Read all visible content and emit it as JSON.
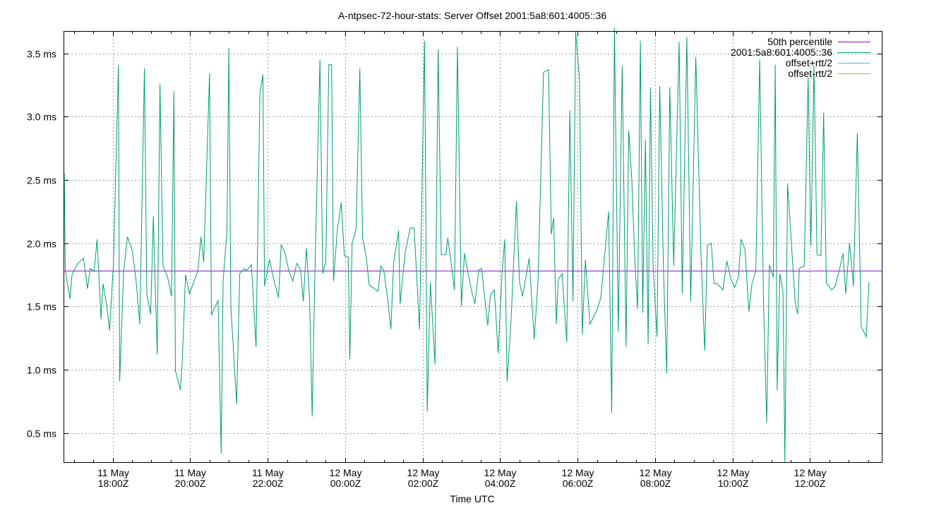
{
  "colors": {
    "percentile": "#9400d3",
    "offset": "#009e73",
    "offset_plus": "#56b4e9",
    "offset_minus": "#e69f00",
    "grid": "#a0a0a0",
    "axis": "#000000"
  },
  "chart_data": {
    "type": "line",
    "title": "A-ntpsec-72-hour-stats: Server Offset 2001:5a8:601:4005::36",
    "xlabel": "Time UTC",
    "ylabel": "",
    "x_unit": "hours since 11 May 17:00Z",
    "xlim": [
      -0.25,
      20.85
    ],
    "ylim": [
      0.27,
      3.67
    ],
    "grid": true,
    "legend_position": "top-right",
    "x_ticks": [
      {
        "x": 1,
        "line1": "11 May",
        "line2": "18:00Z"
      },
      {
        "x": 3,
        "line1": "11 May",
        "line2": "20:00Z"
      },
      {
        "x": 5,
        "line1": "11 May",
        "line2": "22:00Z"
      },
      {
        "x": 7,
        "line1": "12 May",
        "line2": "00:00Z"
      },
      {
        "x": 9,
        "line1": "12 May",
        "line2": "02:00Z"
      },
      {
        "x": 11,
        "line1": "12 May",
        "line2": "04:00Z"
      },
      {
        "x": 13,
        "line1": "12 May",
        "line2": "06:00Z"
      },
      {
        "x": 15,
        "line1": "12 May",
        "line2": "08:00Z"
      },
      {
        "x": 17,
        "line1": "12 May",
        "line2": "10:00Z"
      },
      {
        "x": 19,
        "line1": "12 May",
        "line2": "12:00Z"
      }
    ],
    "y_ticks": [
      {
        "v": 0.5,
        "label": "0.5 ms"
      },
      {
        "v": 1.0,
        "label": "1.0 ms"
      },
      {
        "v": 1.5,
        "label": "1.5 ms"
      },
      {
        "v": 2.0,
        "label": "2.0 ms"
      },
      {
        "v": 2.5,
        "label": "2.5 ms"
      },
      {
        "v": 3.0,
        "label": "3.0 ms"
      },
      {
        "v": 3.5,
        "label": "3.5 ms"
      }
    ],
    "series": [
      {
        "name": "50th percentile",
        "color_key": "percentile",
        "points": [
          [
            -0.25,
            1.78
          ],
          [
            20.85,
            1.78
          ]
        ]
      },
      {
        "name": "2001:5a8:601:4005::36",
        "color_key": "offset",
        "points": [
          [
            -0.25,
            2.55
          ],
          [
            -0.22,
            1.78
          ],
          [
            -0.1,
            1.56
          ],
          [
            -0.05,
            1.75
          ],
          [
            0.1,
            1.84
          ],
          [
            0.25,
            1.88
          ],
          [
            0.35,
            1.64
          ],
          [
            0.42,
            1.8
          ],
          [
            0.52,
            1.78
          ],
          [
            0.6,
            2.03
          ],
          [
            0.7,
            1.4
          ],
          [
            0.75,
            1.68
          ],
          [
            0.85,
            1.5
          ],
          [
            0.92,
            1.31
          ],
          [
            1.02,
            1.84
          ],
          [
            1.15,
            3.41
          ],
          [
            1.18,
            0.91
          ],
          [
            1.28,
            1.76
          ],
          [
            1.38,
            2.05
          ],
          [
            1.5,
            1.95
          ],
          [
            1.6,
            1.72
          ],
          [
            1.7,
            1.36
          ],
          [
            1.82,
            3.38
          ],
          [
            1.88,
            1.6
          ],
          [
            1.98,
            1.44
          ],
          [
            2.05,
            2.21
          ],
          [
            2.15,
            1.12
          ],
          [
            2.22,
            3.26
          ],
          [
            2.3,
            1.82
          ],
          [
            2.42,
            1.73
          ],
          [
            2.52,
            1.58
          ],
          [
            2.58,
            3.2
          ],
          [
            2.62,
            0.99
          ],
          [
            2.75,
            0.84
          ],
          [
            2.8,
            1.1
          ],
          [
            2.88,
            1.75
          ],
          [
            2.98,
            1.6
          ],
          [
            3.1,
            1.7
          ],
          [
            3.2,
            1.78
          ],
          [
            3.28,
            2.05
          ],
          [
            3.35,
            1.85
          ],
          [
            3.5,
            3.34
          ],
          [
            3.55,
            1.43
          ],
          [
            3.72,
            1.55
          ],
          [
            3.8,
            0.34
          ],
          [
            3.85,
            1.7
          ],
          [
            3.95,
            2.1
          ],
          [
            4.0,
            3.54
          ],
          [
            4.05,
            1.5
          ],
          [
            4.2,
            0.73
          ],
          [
            4.28,
            1.76
          ],
          [
            4.4,
            1.8
          ],
          [
            4.45,
            1.78
          ],
          [
            4.58,
            1.83
          ],
          [
            4.7,
            1.18
          ],
          [
            4.8,
            3.19
          ],
          [
            4.88,
            3.33
          ],
          [
            4.92,
            1.66
          ],
          [
            5.05,
            1.87
          ],
          [
            5.15,
            1.72
          ],
          [
            5.28,
            1.57
          ],
          [
            5.35,
            1.99
          ],
          [
            5.45,
            1.92
          ],
          [
            5.55,
            1.78
          ],
          [
            5.65,
            1.7
          ],
          [
            5.75,
            1.84
          ],
          [
            5.85,
            1.79
          ],
          [
            5.92,
            1.54
          ],
          [
            6.0,
            1.96
          ],
          [
            6.08,
            1.58
          ],
          [
            6.15,
            0.63
          ],
          [
            6.22,
            1.78
          ],
          [
            6.35,
            3.45
          ],
          [
            6.42,
            1.76
          ],
          [
            6.5,
            1.85
          ],
          [
            6.58,
            3.41
          ],
          [
            6.65,
            3.41
          ],
          [
            6.7,
            1.7
          ],
          [
            6.8,
            2.11
          ],
          [
            6.9,
            2.32
          ],
          [
            6.98,
            1.9
          ],
          [
            7.08,
            1.89
          ],
          [
            7.12,
            1.08
          ],
          [
            7.18,
            2.0
          ],
          [
            7.28,
            2.11
          ],
          [
            7.38,
            3.38
          ],
          [
            7.45,
            2.04
          ],
          [
            7.55,
            1.88
          ],
          [
            7.62,
            1.67
          ],
          [
            7.75,
            1.64
          ],
          [
            7.85,
            1.62
          ],
          [
            7.92,
            1.82
          ],
          [
            8.0,
            1.78
          ],
          [
            8.1,
            1.55
          ],
          [
            8.18,
            1.32
          ],
          [
            8.25,
            1.84
          ],
          [
            8.38,
            2.1
          ],
          [
            8.42,
            1.52
          ],
          [
            8.55,
            1.93
          ],
          [
            8.68,
            2.12
          ],
          [
            8.78,
            2.12
          ],
          [
            8.92,
            1.32
          ],
          [
            9.05,
            3.6
          ],
          [
            9.12,
            0.67
          ],
          [
            9.2,
            1.69
          ],
          [
            9.32,
            1.04
          ],
          [
            9.4,
            3.53
          ],
          [
            9.48,
            1.91
          ],
          [
            9.6,
            1.91
          ],
          [
            9.65,
            2.04
          ],
          [
            9.72,
            1.88
          ],
          [
            9.82,
            1.63
          ],
          [
            9.9,
            3.55
          ],
          [
            10.0,
            1.5
          ],
          [
            10.08,
            1.92
          ],
          [
            10.15,
            1.8
          ],
          [
            10.25,
            1.64
          ],
          [
            10.35,
            1.52
          ],
          [
            10.45,
            1.79
          ],
          [
            10.52,
            1.8
          ],
          [
            10.68,
            1.35
          ],
          [
            10.75,
            1.59
          ],
          [
            10.85,
            1.63
          ],
          [
            10.95,
            1.13
          ],
          [
            11.05,
            1.77
          ],
          [
            11.12,
            2.03
          ],
          [
            11.18,
            0.91
          ],
          [
            11.28,
            1.38
          ],
          [
            11.42,
            2.33
          ],
          [
            11.5,
            1.69
          ],
          [
            11.58,
            1.58
          ],
          [
            11.75,
            1.88
          ],
          [
            11.88,
            1.24
          ],
          [
            11.98,
            1.71
          ],
          [
            12.12,
            3.35
          ],
          [
            12.25,
            3.37
          ],
          [
            12.32,
            2.07
          ],
          [
            12.38,
            2.2
          ],
          [
            12.45,
            1.36
          ],
          [
            12.5,
            1.71
          ],
          [
            12.6,
            1.76
          ],
          [
            12.72,
            1.22
          ],
          [
            12.8,
            3.05
          ],
          [
            12.88,
            1.54
          ],
          [
            12.95,
            3.67
          ],
          [
            13.05,
            3.29
          ],
          [
            13.12,
            1.28
          ],
          [
            13.2,
            1.87
          ],
          [
            13.32,
            1.36
          ],
          [
            13.5,
            1.47
          ],
          [
            13.6,
            1.57
          ],
          [
            13.8,
            2.25
          ],
          [
            13.88,
            0.66
          ],
          [
            13.95,
            3.7
          ],
          [
            14.05,
            1.3
          ],
          [
            14.15,
            3.4
          ],
          [
            14.25,
            1.18
          ],
          [
            14.32,
            2.89
          ],
          [
            14.4,
            2.49
          ],
          [
            14.48,
            1.84
          ],
          [
            14.55,
            1.48
          ],
          [
            14.62,
            3.6
          ],
          [
            14.68,
            1.45
          ],
          [
            14.75,
            2.82
          ],
          [
            14.82,
            1.2
          ],
          [
            14.88,
            3.23
          ],
          [
            14.95,
            1.8
          ],
          [
            15.05,
            1.26
          ],
          [
            15.12,
            3.24
          ],
          [
            15.22,
            1.75
          ],
          [
            15.3,
            0.97
          ],
          [
            15.38,
            3.23
          ],
          [
            15.48,
            1.82
          ],
          [
            15.62,
            3.59
          ],
          [
            15.7,
            1.6
          ],
          [
            15.82,
            3.63
          ],
          [
            15.92,
            1.54
          ],
          [
            16.05,
            3.47
          ],
          [
            16.18,
            1.95
          ],
          [
            16.28,
            1.15
          ],
          [
            16.35,
            1.98
          ],
          [
            16.45,
            2.0
          ],
          [
            16.52,
            1.68
          ],
          [
            16.6,
            1.68
          ],
          [
            16.75,
            1.63
          ],
          [
            16.85,
            1.86
          ],
          [
            16.95,
            1.72
          ],
          [
            17.05,
            1.65
          ],
          [
            17.15,
            1.73
          ],
          [
            17.22,
            2.03
          ],
          [
            17.32,
            1.95
          ],
          [
            17.42,
            1.46
          ],
          [
            17.5,
            1.68
          ],
          [
            17.6,
            1.78
          ],
          [
            17.7,
            3.45
          ],
          [
            17.8,
            1.52
          ],
          [
            17.88,
            0.58
          ],
          [
            17.95,
            1.83
          ],
          [
            18.05,
            1.73
          ],
          [
            18.1,
            3.41
          ],
          [
            18.15,
            0.84
          ],
          [
            18.22,
            1.76
          ],
          [
            18.3,
            1.62
          ],
          [
            18.35,
            0.27
          ],
          [
            18.42,
            2.47
          ],
          [
            18.55,
            1.84
          ],
          [
            18.62,
            1.52
          ],
          [
            18.68,
            1.44
          ],
          [
            18.72,
            1.8
          ],
          [
            18.85,
            1.82
          ],
          [
            18.95,
            3.31
          ],
          [
            19.02,
            1.98
          ],
          [
            19.1,
            3.4
          ],
          [
            19.18,
            1.91
          ],
          [
            19.28,
            1.9
          ],
          [
            19.35,
            3.03
          ],
          [
            19.42,
            1.69
          ],
          [
            19.55,
            1.63
          ],
          [
            19.65,
            1.66
          ],
          [
            19.78,
            1.82
          ],
          [
            19.85,
            1.92
          ],
          [
            19.92,
            1.6
          ],
          [
            20.02,
            2.0
          ],
          [
            20.12,
            1.66
          ],
          [
            20.22,
            2.87
          ],
          [
            20.32,
            1.34
          ],
          [
            20.45,
            1.26
          ],
          [
            20.52,
            1.69
          ]
        ]
      },
      {
        "name": "offset+rtt/2",
        "color_key": "offset_plus",
        "points": []
      },
      {
        "name": "offset-rtt/2",
        "color_key": "offset_minus",
        "points": []
      }
    ]
  }
}
